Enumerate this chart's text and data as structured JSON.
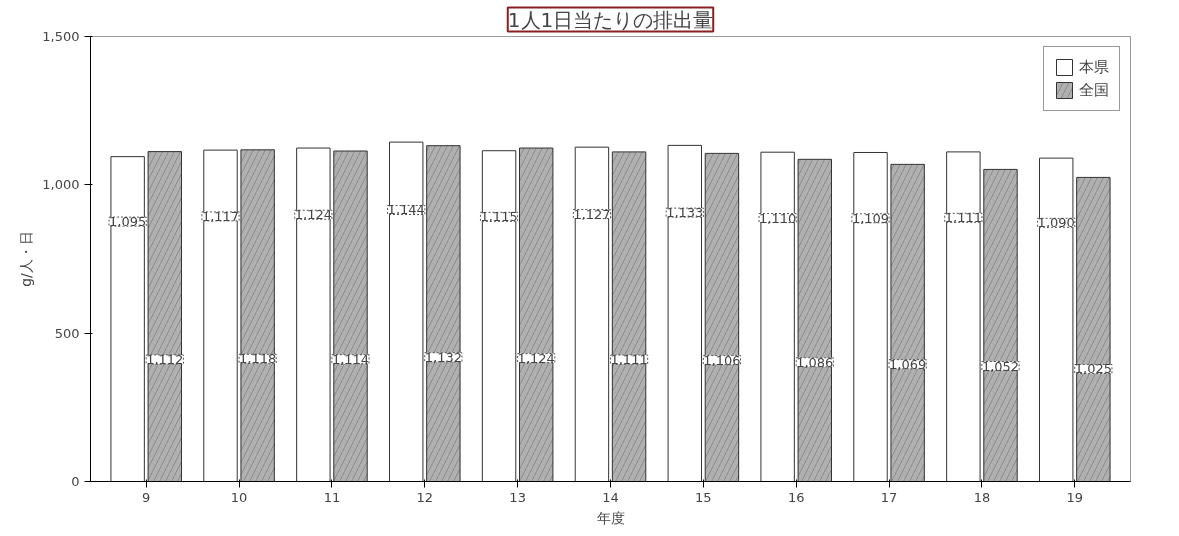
{
  "chart_data": {
    "type": "bar",
    "title": "1人1日当たりの排出量",
    "ylabel": "g/人・日",
    "xlabel": "年度",
    "categories": [
      "9",
      "10",
      "11",
      "12",
      "13",
      "14",
      "15",
      "16",
      "17",
      "18",
      "19"
    ],
    "series": [
      {
        "name": "本県",
        "color": "#ffffff",
        "values": [
          1095,
          1117,
          1124,
          1144,
          1115,
          1127,
          1133,
          1110,
          1109,
          1111,
          1090
        ],
        "value_labels": [
          "1,095",
          "1,117",
          "1,124",
          "1,144",
          "1,115",
          "1,127",
          "1,133",
          "1,110",
          "1,109",
          "1,111",
          "1,090"
        ]
      },
      {
        "name": "全国",
        "color": "#b0b0b0",
        "values": [
          1112,
          1118,
          1114,
          1132,
          1124,
          1111,
          1106,
          1086,
          1069,
          1052,
          1025
        ],
        "value_labels": [
          "1,112",
          "1,118",
          "1,114",
          "1,132",
          "1,124",
          "1,111",
          "1,106",
          "1,086",
          "1,069",
          "1,052",
          "1,025"
        ]
      }
    ],
    "ylim": [
      0,
      1500
    ],
    "yticks": [
      0,
      500,
      {
        "value": 1000,
        "label": "1,000"
      },
      {
        "value": 1500,
        "label": "1,500"
      }
    ],
    "legend": "top right"
  }
}
